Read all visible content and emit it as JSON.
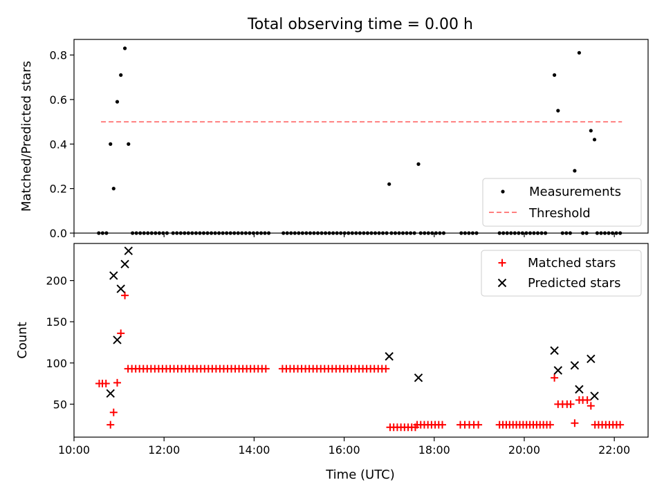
{
  "colors": {
    "measurement": "#000000",
    "threshold": "#ff7f7f",
    "matched": "#ff0000",
    "predicted": "#000000"
  },
  "chart_data": [
    {
      "type": "scatter",
      "title": "Total observing time = 0.00 h",
      "xlabel": "",
      "ylabel": "Matched/Predicted stars",
      "xlim": [
        10.0,
        22.75
      ],
      "ylim": [
        0.0,
        0.87
      ],
      "yticks": [
        0.0,
        0.2,
        0.4,
        0.6,
        0.8
      ],
      "ytick_labels": [
        "0.0",
        "0.2",
        "0.4",
        "0.6",
        "0.8"
      ],
      "legend": {
        "position": "lower-right",
        "entries": [
          "Measurements",
          "Threshold"
        ]
      },
      "threshold": {
        "name": "Threshold",
        "y": 0.5,
        "x": [
          10.6,
          22.17
        ]
      },
      "series": [
        {
          "name": "Measurements",
          "points": [
            [
              10.81,
              0.4
            ],
            [
              10.88,
              0.2
            ],
            [
              10.96,
              0.59
            ],
            [
              11.04,
              0.71
            ],
            [
              11.13,
              0.83
            ],
            [
              11.21,
              0.4
            ],
            [
              17.0,
              0.22
            ],
            [
              17.65,
              0.31
            ],
            [
              20.67,
              0.71
            ],
            [
              20.75,
              0.55
            ],
            [
              21.12,
              0.28
            ],
            [
              21.22,
              0.81
            ],
            [
              21.48,
              0.46
            ],
            [
              21.56,
              0.42
            ]
          ],
          "zero_ranges": [
            [
              10.55,
              10.78
            ],
            [
              11.3,
              12.1
            ],
            [
              12.2,
              14.35
            ],
            [
              14.65,
              16.95
            ],
            [
              17.05,
              17.58
            ],
            [
              17.7,
              18.25
            ],
            [
              18.6,
              18.95
            ],
            [
              19.45,
              20.55
            ],
            [
              20.85,
              21.05
            ],
            [
              21.3,
              21.45
            ],
            [
              21.62,
              22.17
            ]
          ]
        }
      ]
    },
    {
      "type": "scatter",
      "title": "",
      "xlabel": "Time (UTC)",
      "ylabel": "Count",
      "xlim": [
        10.0,
        22.75
      ],
      "ylim": [
        10,
        245
      ],
      "yticks": [
        50,
        100,
        150,
        200
      ],
      "ytick_labels": [
        "50",
        "100",
        "150",
        "200"
      ],
      "xticks": [
        10,
        12,
        14,
        16,
        18,
        20,
        22
      ],
      "xtick_labels": [
        "10:00",
        "12:00",
        "14:00",
        "16:00",
        "18:00",
        "20:00",
        "22:00"
      ],
      "legend": {
        "position": "top-right",
        "entries": [
          "Matched stars",
          "Predicted stars"
        ]
      },
      "series": [
        {
          "name": "Matched stars",
          "points": [
            [
              10.56,
              75
            ],
            [
              10.63,
              75
            ],
            [
              10.71,
              75
            ],
            [
              10.81,
              25
            ],
            [
              10.88,
              40
            ],
            [
              10.96,
              76
            ],
            [
              11.04,
              136
            ],
            [
              11.13,
              182
            ],
            [
              20.67,
              82
            ],
            [
              20.75,
              50
            ],
            [
              20.85,
              50
            ],
            [
              20.95,
              50
            ],
            [
              21.03,
              50
            ],
            [
              21.12,
              27
            ],
            [
              21.22,
              55
            ],
            [
              21.3,
              55
            ],
            [
              21.4,
              55
            ],
            [
              21.48,
              48
            ]
          ],
          "runs": [
            {
              "x0": 11.2,
              "x1": 14.33,
              "step": 0.085,
              "y": 93
            },
            {
              "x0": 14.63,
              "x1": 16.95,
              "step": 0.085,
              "y": 93
            },
            {
              "x0": 17.02,
              "x1": 17.58,
              "step": 0.08,
              "y": 22
            },
            {
              "x0": 17.62,
              "x1": 18.25,
              "step": 0.08,
              "y": 25
            },
            {
              "x0": 18.58,
              "x1": 18.98,
              "step": 0.1,
              "y": 25
            },
            {
              "x0": 19.45,
              "x1": 20.58,
              "step": 0.075,
              "y": 25
            },
            {
              "x0": 21.57,
              "x1": 22.17,
              "step": 0.08,
              "y": 25
            }
          ]
        },
        {
          "name": "Predicted stars",
          "points": [
            [
              10.81,
              63
            ],
            [
              10.88,
              206
            ],
            [
              10.96,
              128
            ],
            [
              11.04,
              190
            ],
            [
              11.13,
              220
            ],
            [
              11.21,
              236
            ],
            [
              17.0,
              108
            ],
            [
              17.65,
              82
            ],
            [
              20.67,
              115
            ],
            [
              20.75,
              91
            ],
            [
              21.12,
              97
            ],
            [
              21.22,
              68
            ],
            [
              21.48,
              105
            ],
            [
              21.56,
              60
            ]
          ]
        }
      ]
    }
  ]
}
